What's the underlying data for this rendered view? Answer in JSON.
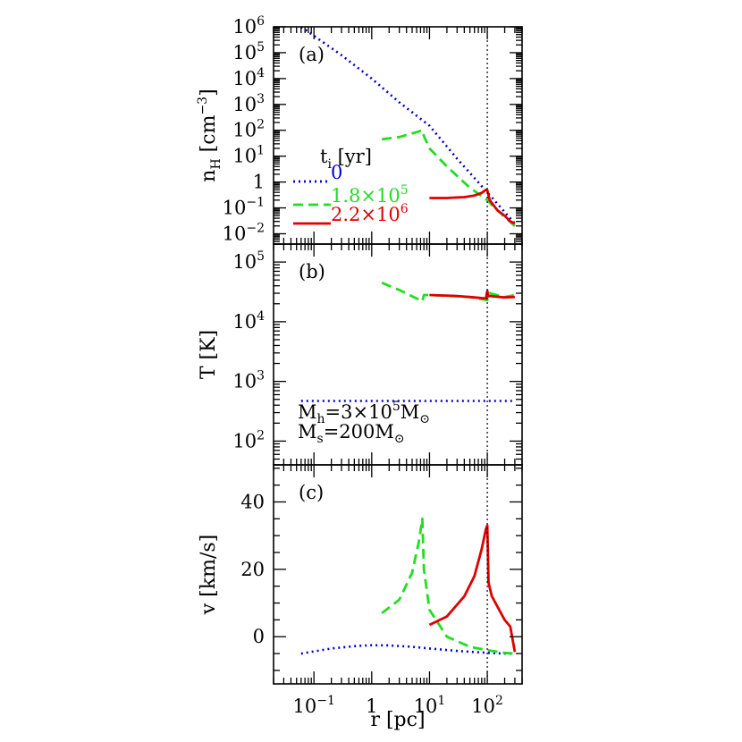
{
  "figure": {
    "x_axis_label": "r [pc]",
    "x_ticks": [
      {
        "label": "10",
        "exp": "−1",
        "value": 0.1
      },
      {
        "label": "1",
        "exp": "",
        "value": 1
      },
      {
        "label": "10",
        "exp": "1",
        "value": 10
      },
      {
        "label": "10",
        "exp": "2",
        "value": 100
      }
    ],
    "vline_r": 100,
    "legend": {
      "title_main": "t",
      "title_sub": "i",
      "title_unit": " [yr]",
      "entries": [
        {
          "series": "t=0",
          "label": "0",
          "color": "#0000cc",
          "style": "dotted"
        },
        {
          "series": "t=1.8e5",
          "label": "1.8×10",
          "exp": "5",
          "color": "#22dd22",
          "style": "dashed"
        },
        {
          "series": "t=2.2e6",
          "label": "2.2×10",
          "exp": "6",
          "color": "#dd0000",
          "style": "solid"
        }
      ]
    },
    "mass_note": {
      "line1_main": "M",
      "line1_sub": "h",
      "line1_rest": "=3×10",
      "line1_exp": "5",
      "line1_unit": "M",
      "line2_main": "M",
      "line2_sub": "s",
      "line2_rest": "=200M",
      "sun_symbol": "⊙"
    }
  },
  "chart_data": [
    {
      "type": "line",
      "panel_label": "(a)",
      "ylabel_main": "n",
      "ylabel_sub": "H",
      "ylabel_unit": " [cm",
      "ylabel_exp": "−3",
      "ylabel_close": "]",
      "xscale": "log",
      "yscale": "log",
      "xlim": [
        0.02,
        400
      ],
      "ylim": [
        0.004,
        1000000
      ],
      "y_ticks": [
        {
          "label": "10",
          "exp": "−2",
          "value": 0.01
        },
        {
          "label": "10",
          "exp": "−1",
          "value": 0.1
        },
        {
          "label": "1",
          "exp": "",
          "value": 1
        },
        {
          "label": "10",
          "exp": "1",
          "value": 10
        },
        {
          "label": "10",
          "exp": "2",
          "value": 100
        },
        {
          "label": "10",
          "exp": "3",
          "value": 1000
        },
        {
          "label": "10",
          "exp": "4",
          "value": 10000
        },
        {
          "label": "10",
          "exp": "5",
          "value": 100000
        },
        {
          "label": "10",
          "exp": "6",
          "value": 1000000
        }
      ],
      "series": [
        {
          "color": "#0000cc",
          "style": "dotted",
          "x": [
            0.06,
            0.3,
            1,
            3,
            10,
            30,
            100,
            300
          ],
          "y": [
            1000000,
            80000,
            10000,
            1200,
            150,
            8,
            0.4,
            0.025
          ]
        },
        {
          "color": "#22dd22",
          "style": "dashed",
          "x": [
            1.5,
            3,
            6,
            7.5,
            8,
            10,
            20,
            50,
            100,
            120,
            200,
            300
          ],
          "y": [
            45,
            55,
            85,
            100,
            60,
            20,
            4,
            0.6,
            0.2,
            0.13,
            0.045,
            0.02
          ]
        },
        {
          "color": "#dd0000",
          "style": "solid",
          "x": [
            10,
            20,
            40,
            60,
            80,
            95,
            100,
            110,
            150,
            200,
            250,
            300
          ],
          "y": [
            0.24,
            0.24,
            0.26,
            0.3,
            0.38,
            0.5,
            0.48,
            0.2,
            0.08,
            0.05,
            0.03,
            0.025
          ]
        }
      ]
    },
    {
      "type": "line",
      "panel_label": "(b)",
      "ylabel_main": "T [K]",
      "xscale": "log",
      "yscale": "log",
      "xlim": [
        0.02,
        400
      ],
      "ylim": [
        40,
        200000
      ],
      "y_ticks": [
        {
          "label": "10",
          "exp": "2",
          "value": 100
        },
        {
          "label": "10",
          "exp": "3",
          "value": 1000
        },
        {
          "label": "10",
          "exp": "4",
          "value": 10000
        },
        {
          "label": "10",
          "exp": "5",
          "value": 100000
        }
      ],
      "series": [
        {
          "color": "#0000cc",
          "style": "dotted",
          "x": [
            0.06,
            300
          ],
          "y": [
            470,
            470
          ]
        },
        {
          "color": "#22dd22",
          "style": "dashed",
          "x": [
            1.5,
            3,
            7.5,
            8,
            10,
            50,
            100,
            110,
            200,
            300
          ],
          "y": [
            45000,
            34000,
            22000,
            28000,
            28000,
            26000,
            23000,
            30000,
            26000,
            28000
          ]
        },
        {
          "color": "#dd0000",
          "style": "solid",
          "x": [
            10,
            30,
            60,
            95,
            100,
            104,
            110,
            200,
            300
          ],
          "y": [
            28000,
            27000,
            25500,
            24500,
            33000,
            26500,
            27000,
            25500,
            26000
          ]
        }
      ]
    },
    {
      "type": "line",
      "panel_label": "(c)",
      "ylabel_main": "v [km/s]",
      "xscale": "log",
      "yscale": "linear",
      "xlim": [
        0.02,
        400
      ],
      "ylim": [
        -14,
        51
      ],
      "y_ticks": [
        {
          "label": "0",
          "exp": "",
          "value": 0
        },
        {
          "label": "20",
          "exp": "",
          "value": 20
        },
        {
          "label": "40",
          "exp": "",
          "value": 40
        }
      ],
      "series": [
        {
          "color": "#0000cc",
          "style": "dotted",
          "x": [
            0.06,
            0.2,
            0.5,
            1,
            2,
            5,
            10,
            30,
            100,
            200,
            300
          ],
          "y": [
            -5,
            -3.5,
            -2.8,
            -2.5,
            -2.6,
            -3,
            -3.5,
            -4.2,
            -4.8,
            -5,
            -5
          ]
        },
        {
          "color": "#22dd22",
          "style": "dashed",
          "x": [
            1.5,
            3,
            5,
            6.5,
            7.5,
            8,
            10,
            20,
            50,
            100,
            200,
            300
          ],
          "y": [
            7,
            11,
            19,
            28,
            35,
            20,
            8,
            0,
            -3,
            -4,
            -4.8,
            -5
          ]
        },
        {
          "color": "#dd0000",
          "style": "solid",
          "x": [
            10,
            20,
            40,
            60,
            80,
            95,
            100,
            105,
            120,
            200,
            250,
            300
          ],
          "y": [
            3.5,
            6,
            12,
            18,
            26,
            32,
            33,
            16,
            12,
            5,
            3,
            -4.5
          ]
        }
      ]
    }
  ]
}
